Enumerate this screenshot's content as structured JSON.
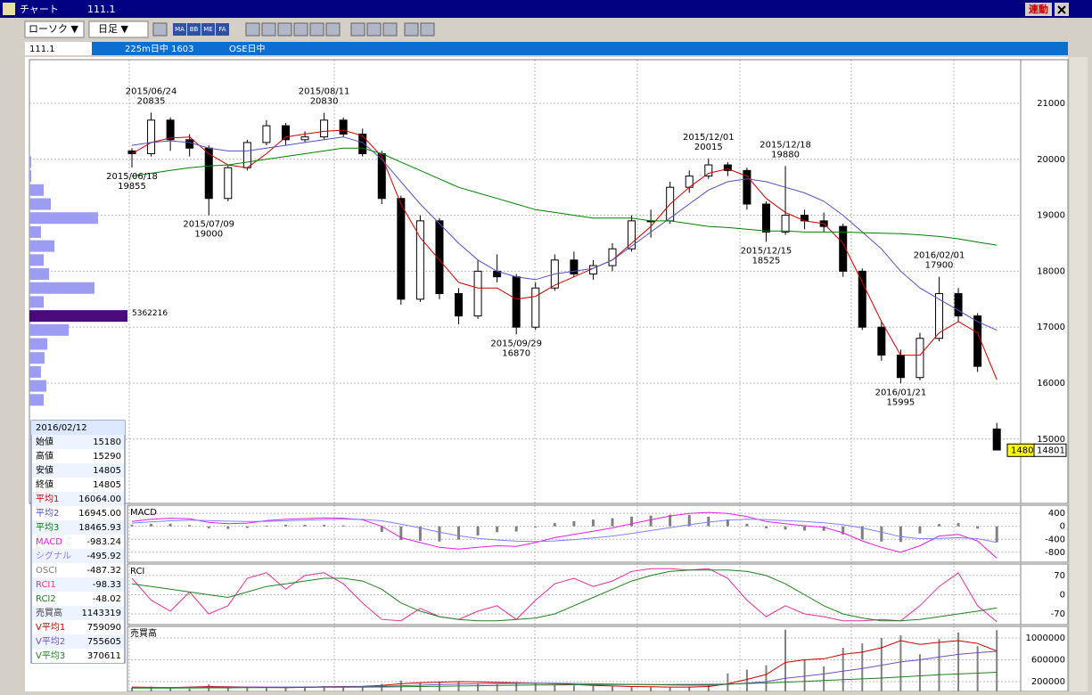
{
  "window": {
    "title": "チャート",
    "symbol": "111.1",
    "link_button": "連動",
    "chart_style": "ローソク ▼",
    "period": "日足 ▼",
    "toolbar_icons": [
      "MA",
      "BB",
      "ME",
      "FA"
    ],
    "strip_symbol": "111.1",
    "strip_contract": "225m日中 1603",
    "strip_session": "OSE日中"
  },
  "info_panel": {
    "date": "2016/02/12",
    "rows": [
      {
        "label": "始値",
        "value": "15180",
        "color": "#000000"
      },
      {
        "label": "高値",
        "value": "15290",
        "color": "#000000"
      },
      {
        "label": "安値",
        "value": "14805",
        "color": "#000000"
      },
      {
        "label": "終値",
        "value": "14805",
        "color": "#000000"
      },
      {
        "label": "平均1",
        "value": "16064.00",
        "color": "#cc0000"
      },
      {
        "label": "平均2",
        "value": "16945.00",
        "color": "#5050c0"
      },
      {
        "label": "平均3",
        "value": "18465.93",
        "color": "#008000"
      },
      {
        "label": "MACD",
        "value": "-983.24",
        "color": "#e020e0"
      },
      {
        "label": "シグナル",
        "value": "-495.92",
        "color": "#8080ff"
      },
      {
        "label": "OSCI",
        "value": "-487.32",
        "color": "#808080"
      },
      {
        "label": "RCI1",
        "value": "-98.33",
        "color": "#e0309a"
      },
      {
        "label": "RCI2",
        "value": "-48.02",
        "color": "#208020"
      },
      {
        "label": "売買高",
        "value": "1143319",
        "color": "#404040"
      },
      {
        "label": "V平均1",
        "value": "759090",
        "color": "#cc0000"
      },
      {
        "label": "V平均2",
        "value": "755605",
        "color": "#7050c0"
      },
      {
        "label": "V平均3",
        "value": "370611",
        "color": "#208020"
      }
    ]
  },
  "chart_data": [
    {
      "type": "candlestick",
      "open": [
        20150,
        20100,
        20700,
        20350,
        20200,
        19300,
        19850,
        20300,
        20600,
        20350,
        20400,
        20700,
        20450,
        20100,
        19300,
        17500,
        18900,
        17600,
        17200,
        18000,
        17900,
        17000,
        17700,
        18200,
        17950,
        18100,
        18400,
        18900,
        18900,
        19500,
        19700,
        19900,
        19800,
        19200,
        18700,
        19000,
        18900,
        18800,
        18000,
        17000,
        16500,
        16100,
        16800,
        17600,
        17200,
        15180
      ],
      "high": [
        20200,
        20835,
        20750,
        20450,
        20250,
        19900,
        20350,
        20700,
        20650,
        20500,
        20830,
        20750,
        20550,
        20150,
        19350,
        19000,
        18950,
        17700,
        18200,
        18300,
        17950,
        17800,
        18300,
        18350,
        18200,
        18500,
        19000,
        19100,
        19600,
        19800,
        20015,
        19950,
        19850,
        19250,
        19880,
        19100,
        19050,
        18850,
        18050,
        17100,
        16600,
        16900,
        17900,
        17700,
        17250,
        15290
      ],
      "low": [
        19855,
        20050,
        20150,
        20050,
        19000,
        19250,
        19800,
        20250,
        20250,
        20300,
        20350,
        20400,
        20050,
        19200,
        17400,
        17450,
        17500,
        17050,
        17150,
        17800,
        16870,
        16950,
        17650,
        17900,
        17850,
        18000,
        18350,
        18600,
        18850,
        19400,
        19650,
        19700,
        19100,
        18525,
        18650,
        18750,
        18700,
        17900,
        16950,
        16400,
        15995,
        16050,
        16750,
        17100,
        16200,
        14805
      ],
      "close": [
        20100,
        20700,
        20350,
        20200,
        19300,
        19850,
        20300,
        20600,
        20350,
        20400,
        20700,
        20450,
        20100,
        19300,
        17500,
        18900,
        17600,
        17200,
        18000,
        17900,
        17000,
        17700,
        18200,
        17950,
        18100,
        18400,
        18900,
        18900,
        19500,
        19700,
        19900,
        19800,
        19200,
        18700,
        19000,
        18900,
        18800,
        18000,
        17000,
        16500,
        16100,
        16800,
        17600,
        17200,
        16300,
        14805
      ],
      "moving_averages": [
        {
          "color": "#cc0000",
          "values": [
            20100,
            20300,
            20380,
            20400,
            20100,
            19900,
            19850,
            20100,
            20400,
            20450,
            20500,
            20520,
            20420,
            20050,
            19200,
            18600,
            18200,
            17800,
            17700,
            17700,
            17500,
            17550,
            17750,
            17900,
            18050,
            18200,
            18500,
            18800,
            19200,
            19500,
            19750,
            19830,
            19700,
            19300,
            19050,
            18900,
            18850,
            18500,
            17800,
            17100,
            16500,
            16500,
            16900,
            17100,
            16900,
            16064
          ]
        },
        {
          "color": "#5050c0",
          "values": [
            20250,
            20300,
            20330,
            20300,
            20200,
            20150,
            20150,
            20200,
            20250,
            20300,
            20350,
            20400,
            20300,
            20000,
            19600,
            19200,
            18850,
            18500,
            18200,
            18000,
            17900,
            17850,
            17950,
            18000,
            18050,
            18200,
            18450,
            18700,
            18950,
            19200,
            19450,
            19600,
            19650,
            19600,
            19500,
            19400,
            19250,
            19000,
            18700,
            18400,
            18000,
            17700,
            17500,
            17300,
            17100,
            16945
          ]
        },
        {
          "color": "#008000",
          "values": [
            19700,
            19750,
            19800,
            19850,
            19880,
            19900,
            19950,
            20000,
            20050,
            20100,
            20150,
            20200,
            20200,
            20100,
            19950,
            19800,
            19650,
            19500,
            19400,
            19300,
            19200,
            19100,
            19050,
            19000,
            18950,
            18950,
            18950,
            18900,
            18900,
            18850,
            18800,
            18780,
            18750,
            18720,
            18720,
            18700,
            18700,
            18700,
            18690,
            18680,
            18670,
            18650,
            18620,
            18580,
            18520,
            18466
          ]
        }
      ],
      "ylim": [
        13850,
        21780
      ],
      "yticks": [
        15000,
        16000,
        17000,
        18000,
        19000,
        20000,
        21000
      ],
      "grid": true,
      "annotations": [
        {
          "date": "2015/06/18",
          "value": 19855,
          "position": "below"
        },
        {
          "date": "2015/06/24",
          "value": 20835,
          "position": "above"
        },
        {
          "date": "2015/07/09",
          "value": 19000,
          "position": "below"
        },
        {
          "date": "2015/08/11",
          "value": 20830,
          "position": "above"
        },
        {
          "date": "2015/09/29",
          "value": 16870,
          "position": "below"
        },
        {
          "date": "2015/12/01",
          "value": 20015,
          "position": "above"
        },
        {
          "date": "2015/12/15",
          "value": 18525,
          "position": "below"
        },
        {
          "date": "2015/12/18",
          "value": 19880,
          "position": "above"
        },
        {
          "date": "2016/01/21",
          "value": 15995,
          "position": "below"
        },
        {
          "date": "2016/02/01",
          "value": 17900,
          "position": "above"
        }
      ],
      "volume_profile": {
        "color": "#9c9cf0",
        "highlight_color": "#4b0a7a",
        "prices": [
          19950,
          19700,
          19450,
          19200,
          18950,
          18700,
          18450,
          18200,
          17950,
          17700,
          17450,
          17200,
          16950,
          16700,
          16450,
          16200,
          15950,
          15700
        ],
        "volumes": [
          100000,
          100000,
          780000,
          1170000,
          3750000,
          630000,
          1370000,
          780000,
          1070000,
          3560000,
          780000,
          5362216,
          2150000,
          980000,
          830000,
          630000,
          930000,
          780000
        ]
      },
      "last_price": 14801,
      "last_price_tag": "1480"
    },
    {
      "type": "macd",
      "title": "MACD",
      "series": [
        {
          "color": "#e020e0",
          "values": [
            150,
            220,
            250,
            230,
            120,
            80,
            100,
            180,
            220,
            240,
            260,
            250,
            200,
            0,
            -350,
            -500,
            -650,
            -700,
            -650,
            -600,
            -620,
            -500,
            -350,
            -250,
            -150,
            -50,
            80,
            200,
            320,
            400,
            430,
            400,
            300,
            150,
            80,
            20,
            -30,
            -200,
            -450,
            -650,
            -800,
            -600,
            -300,
            -250,
            -450,
            -983.24
          ]
        },
        {
          "color": "#8080ff",
          "values": [
            100,
            140,
            170,
            190,
            180,
            160,
            150,
            155,
            170,
            190,
            210,
            220,
            215,
            170,
            70,
            -50,
            -180,
            -290,
            -370,
            -420,
            -460,
            -470,
            -450,
            -410,
            -360,
            -300,
            -220,
            -130,
            -40,
            50,
            130,
            190,
            220,
            210,
            180,
            150,
            110,
            50,
            -50,
            -180,
            -320,
            -380,
            -370,
            -350,
            -380,
            -495.92
          ]
        }
      ],
      "histogram": {
        "color": "#808080",
        "values": [
          50,
          80,
          80,
          40,
          -60,
          -80,
          -50,
          25,
          50,
          50,
          50,
          30,
          -15,
          -170,
          -420,
          -450,
          -470,
          -410,
          -280,
          -180,
          -160,
          -30,
          100,
          160,
          210,
          250,
          300,
          330,
          360,
          350,
          300,
          210,
          80,
          -60,
          -100,
          -130,
          -140,
          -250,
          -400,
          -470,
          -480,
          -220,
          70,
          100,
          -70,
          -487.32
        ]
      },
      "ylim": [
        -1108,
        652
      ],
      "yticks": [
        400,
        0,
        -400,
        -800
      ]
    },
    {
      "type": "line",
      "title": "RCI",
      "series": [
        {
          "color": "#e0309a",
          "values": [
            60,
            -20,
            -60,
            10,
            -70,
            -40,
            60,
            80,
            20,
            70,
            80,
            40,
            -30,
            -90,
            -95,
            -50,
            -80,
            -90,
            -60,
            -40,
            -90,
            -20,
            40,
            60,
            30,
            50,
            85,
            95,
            95,
            90,
            95,
            60,
            -20,
            -80,
            -40,
            -70,
            -80,
            -95,
            -95,
            -90,
            -95,
            -40,
            30,
            80,
            -40,
            -98.33
          ]
        },
        {
          "color": "#208020",
          "values": [
            40,
            30,
            20,
            10,
            0,
            -10,
            10,
            30,
            40,
            50,
            60,
            60,
            50,
            20,
            -30,
            -60,
            -80,
            -90,
            -95,
            -95,
            -90,
            -85,
            -70,
            -40,
            -10,
            20,
            50,
            70,
            85,
            90,
            90,
            90,
            85,
            70,
            40,
            0,
            -40,
            -70,
            -85,
            -95,
            -95,
            -90,
            -80,
            -70,
            -60,
            -48.02
          ]
        }
      ],
      "ylim": [
        -109,
        112
      ],
      "yticks": [
        70,
        0,
        -70
      ]
    },
    {
      "type": "volume",
      "title": "売買高",
      "color": "#808080",
      "values": [
        90000,
        110000,
        80000,
        70000,
        150000,
        100000,
        90000,
        80000,
        85000,
        95000,
        120000,
        100000,
        110000,
        160000,
        220000,
        180000,
        200000,
        210000,
        170000,
        150000,
        190000,
        160000,
        140000,
        130000,
        120000,
        110000,
        100000,
        100000,
        90000,
        110000,
        130000,
        350000,
        420000,
        500000,
        1150000,
        600000,
        480000,
        820000,
        900000,
        1000000,
        1050000,
        700000,
        980000,
        1100000,
        850000,
        1143319
      ],
      "series": [
        {
          "color": "#cc0000",
          "values": [
            100000,
            95000,
            90000,
            100000,
            110000,
            105000,
            100000,
            95000,
            90000,
            95000,
            105000,
            110000,
            115000,
            130000,
            160000,
            180000,
            190000,
            200000,
            195000,
            185000,
            180000,
            170000,
            160000,
            145000,
            130000,
            120000,
            110000,
            105000,
            100000,
            100000,
            110000,
            160000,
            240000,
            330000,
            550000,
            600000,
            620000,
            700000,
            740000,
            820000,
            950000,
            880000,
            920000,
            950000,
            900000,
            759090
          ]
        },
        {
          "color": "#7050c0",
          "values": [
            90000,
            92000,
            94000,
            95000,
            97000,
            98000,
            100000,
            100000,
            100000,
            102000,
            104000,
            106000,
            110000,
            115000,
            125000,
            135000,
            145000,
            155000,
            160000,
            165000,
            168000,
            170000,
            168000,
            165000,
            160000,
            155000,
            150000,
            145000,
            140000,
            135000,
            135000,
            150000,
            170000,
            200000,
            260000,
            300000,
            340000,
            390000,
            440000,
            500000,
            560000,
            600000,
            650000,
            700000,
            730000,
            755605
          ]
        },
        {
          "color": "#208020",
          "values": [
            80000,
            80000,
            82000,
            84000,
            85000,
            86000,
            88000,
            90000,
            92000,
            94000,
            96000,
            98000,
            100000,
            102000,
            105000,
            110000,
            115000,
            120000,
            125000,
            130000,
            135000,
            138000,
            140000,
            142000,
            144000,
            145000,
            146000,
            147000,
            148000,
            149000,
            150000,
            155000,
            165000,
            175000,
            190000,
            205000,
            220000,
            235000,
            250000,
            265000,
            285000,
            305000,
            325000,
            340000,
            355000,
            370611
          ]
        }
      ],
      "ylim": [
        20000,
        1212000
      ],
      "yticks": [
        1000000,
        600000,
        200000
      ]
    }
  ]
}
